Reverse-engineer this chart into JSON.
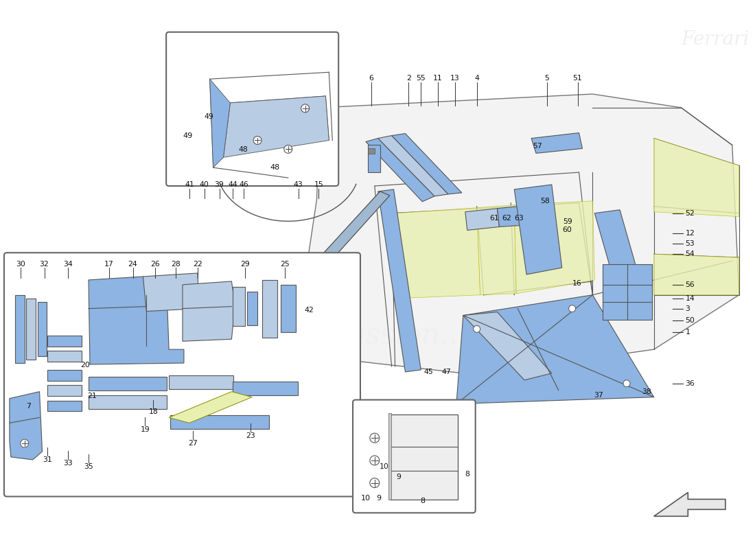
{
  "bg_color": "#ffffff",
  "fig_width": 11.0,
  "fig_height": 8.0,
  "dpi": 100,
  "part_color_light": "#b8cce4",
  "part_color_mid": "#8db4e2",
  "part_color_yellow": "#e8f0b0",
  "line_color": "#555555",
  "right_labels": [
    [
      "52",
      1020,
      310
    ],
    [
      "12",
      1020,
      340
    ],
    [
      "53",
      1020,
      355
    ],
    [
      "54",
      1020,
      370
    ],
    [
      "56",
      1020,
      415
    ],
    [
      "14",
      1020,
      435
    ],
    [
      "3",
      1020,
      450
    ],
    [
      "50",
      1020,
      468
    ],
    [
      "1",
      1020,
      485
    ],
    [
      "36",
      1020,
      560
    ]
  ],
  "top_labels": [
    [
      "6",
      545,
      112
    ],
    [
      "2",
      600,
      112
    ],
    [
      "55",
      618,
      112
    ],
    [
      "11",
      643,
      112
    ],
    [
      "13",
      668,
      112
    ],
    [
      "4",
      700,
      112
    ],
    [
      "5",
      803,
      112
    ],
    [
      "51",
      848,
      112
    ]
  ],
  "inset1_top_labels": [
    [
      "41",
      278,
      268
    ],
    [
      "40",
      300,
      268
    ],
    [
      "39",
      322,
      268
    ],
    [
      "44",
      342,
      268
    ],
    [
      "46",
      358,
      268
    ],
    [
      "43",
      438,
      268
    ],
    [
      "15",
      468,
      268
    ]
  ],
  "left_top_labels": [
    [
      "30",
      30,
      385
    ],
    [
      "32",
      65,
      385
    ],
    [
      "34",
      100,
      385
    ],
    [
      "17",
      160,
      385
    ],
    [
      "24",
      195,
      385
    ],
    [
      "26",
      228,
      385
    ],
    [
      "28",
      258,
      385
    ],
    [
      "22",
      290,
      385
    ],
    [
      "29",
      360,
      385
    ],
    [
      "25",
      418,
      385
    ]
  ],
  "left_bot_labels": [
    [
      "31",
      70,
      672
    ],
    [
      "33",
      100,
      677
    ],
    [
      "35",
      130,
      682
    ],
    [
      "19",
      213,
      628
    ],
    [
      "18",
      225,
      602
    ],
    [
      "27",
      283,
      648
    ],
    [
      "23",
      368,
      637
    ]
  ],
  "scatter_labels": [
    [
      "7",
      38,
      593
    ],
    [
      "20",
      118,
      533
    ],
    [
      "21",
      128,
      578
    ],
    [
      "42",
      447,
      452
    ],
    [
      "16",
      840,
      413
    ],
    [
      "57",
      782,
      212
    ],
    [
      "58",
      793,
      292
    ],
    [
      "59",
      826,
      322
    ],
    [
      "60",
      826,
      334
    ],
    [
      "61",
      719,
      317
    ],
    [
      "62",
      737,
      317
    ],
    [
      "63",
      755,
      317
    ],
    [
      "37",
      872,
      577
    ],
    [
      "38",
      942,
      572
    ],
    [
      "45",
      622,
      543
    ],
    [
      "47",
      648,
      543
    ],
    [
      "48",
      350,
      217
    ],
    [
      "49",
      300,
      168
    ],
    [
      "10",
      557,
      682
    ],
    [
      "9",
      582,
      697
    ],
    [
      "8",
      682,
      693
    ]
  ]
}
